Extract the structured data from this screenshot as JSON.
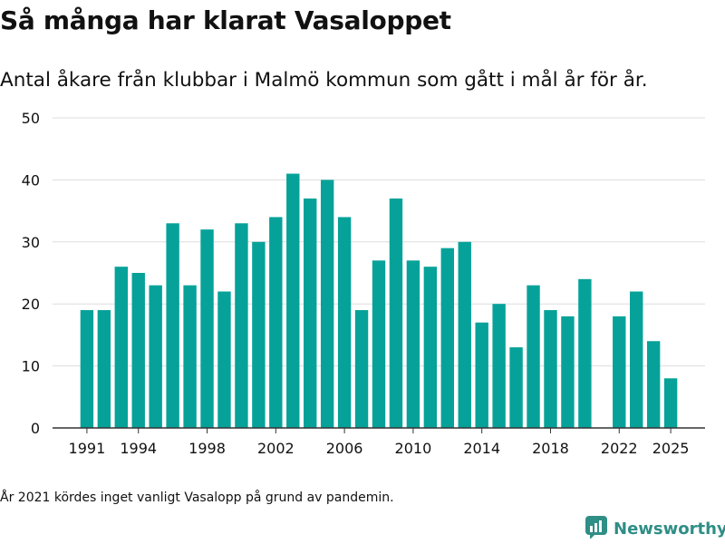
{
  "title": "Så många har klarat Vasaloppet",
  "subtitle": "Antal åkare från klubbar i Malmö kommun som gått i mål år för år.",
  "footnote": "År 2021 kördes inget vanligt Vasalopp på grund av pandemin.",
  "brand": {
    "name": "Newsworthy",
    "icon": "bar-chart-logo-icon"
  },
  "colors": {
    "bar": "#06a299",
    "grid": "#dddddd",
    "axis": "#333333",
    "text": "#111111",
    "brand": "#2f8e86"
  },
  "chart_data": {
    "type": "bar",
    "title": "Så många har klarat Vasaloppet",
    "xlabel": "",
    "ylabel": "",
    "ylim": [
      0,
      50
    ],
    "yticks": [
      0,
      10,
      20,
      30,
      40,
      50
    ],
    "xlim": [
      1989,
      2027
    ],
    "xticks": [
      "1991",
      "1994",
      "1998",
      "2002",
      "2006",
      "2010",
      "2014",
      "2018",
      "2022",
      "2025"
    ],
    "grid": true,
    "legend": "none",
    "categories": [
      1991,
      1992,
      1993,
      1994,
      1995,
      1996,
      1997,
      1998,
      1999,
      2000,
      2001,
      2002,
      2003,
      2004,
      2005,
      2006,
      2007,
      2008,
      2009,
      2010,
      2011,
      2012,
      2013,
      2014,
      2015,
      2016,
      2017,
      2018,
      2019,
      2020,
      2022,
      2023,
      2024,
      2025
    ],
    "values": [
      19,
      19,
      26,
      25,
      23,
      33,
      23,
      32,
      22,
      33,
      30,
      34,
      41,
      37,
      40,
      34,
      19,
      27,
      37,
      27,
      26,
      29,
      30,
      17,
      20,
      13,
      23,
      19,
      18,
      24,
      18,
      22,
      14,
      8
    ]
  }
}
